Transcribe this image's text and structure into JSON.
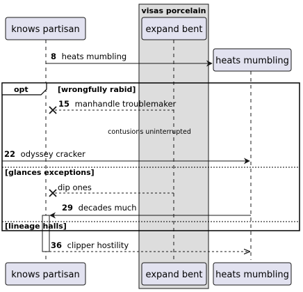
{
  "box": {
    "title": "visas porcelain",
    "fill": "#dddddd"
  },
  "participants": [
    {
      "key": "knows",
      "label": "knows partisan"
    },
    {
      "key": "expand",
      "label": "expand bent"
    },
    {
      "key": "heats",
      "label": "heats mumbling"
    }
  ],
  "colors": {
    "participant_fill": "#e2e2f0",
    "participant_stroke": "#181818",
    "line": "#181818"
  },
  "messages": [
    {
      "num": "8",
      "text": "heats mumbling",
      "from": "knows",
      "to": "heats",
      "style": "solid",
      "note": "creates participant"
    },
    {
      "num": "15",
      "text": "manhandle troublemaker",
      "from": "expand",
      "to": "knows",
      "style": "dashed",
      "end": "cross"
    },
    {
      "num": "22",
      "text": "odyssey cracker",
      "from": "left-edge",
      "to": "heats",
      "style": "solid"
    },
    {
      "num": "",
      "text": "dip ones",
      "from": "expand",
      "to": "knows",
      "style": "dashed",
      "end": "cross"
    },
    {
      "num": "29",
      "text": "decades much",
      "from": "heats",
      "to": "knows",
      "style": "solid"
    },
    {
      "num": "36",
      "text": "clipper hostility",
      "from": "knows",
      "to": "heats",
      "style": "dashed"
    }
  ],
  "delay": {
    "text": "contusions uninterrupted"
  },
  "fragment": {
    "operator": "opt",
    "guard": "[wrongfully rabid]",
    "sections": [
      "[glances exceptions]",
      "[lineage halls]"
    ]
  }
}
